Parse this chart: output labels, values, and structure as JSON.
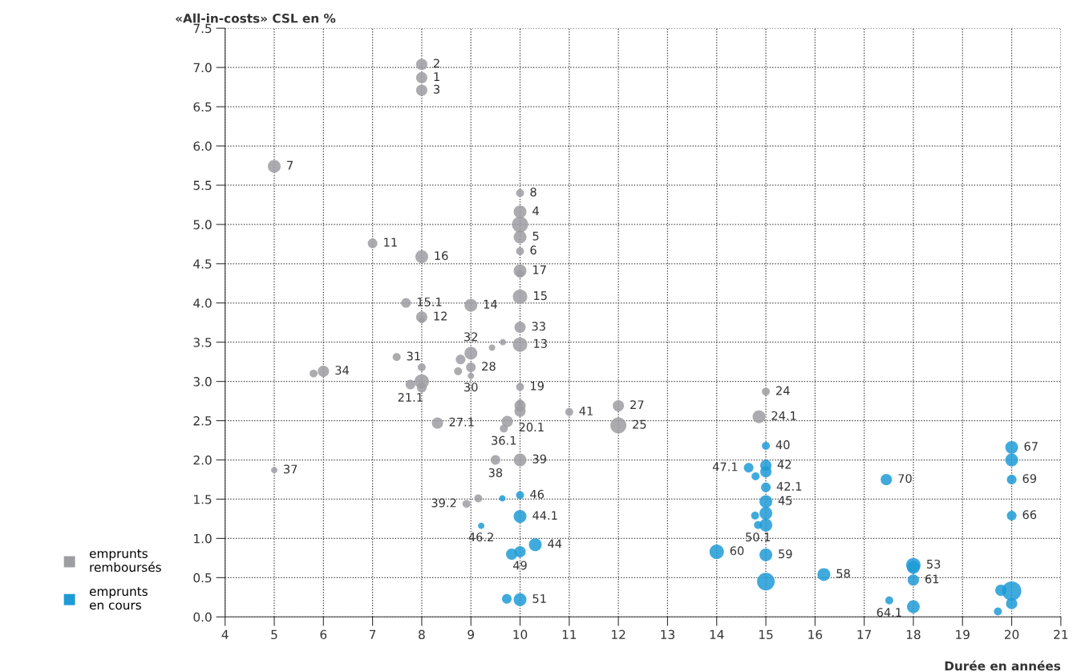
{
  "chart_data": {
    "type": "bubble",
    "ylabel": "«All-in-costs» CSL en %",
    "xlabel": "Durée en années",
    "xlim": [
      4,
      21
    ],
    "xticks": [
      4,
      5,
      6,
      7,
      8,
      9,
      10,
      11,
      12,
      13,
      14,
      15,
      16,
      17,
      18,
      19,
      20,
      21
    ],
    "ylim": [
      0,
      7.5
    ],
    "yticks": [
      {
        "value": 0,
        "label": "0.0"
      },
      {
        "value": 0.5,
        "label": "0.5"
      },
      {
        "value": 1,
        "label": "1.0"
      },
      {
        "value": 1.5,
        "label": "1.5"
      },
      {
        "value": 2,
        "label": "2.0"
      },
      {
        "value": 2.5,
        "label": "2.5"
      },
      {
        "value": 3,
        "label": "3.0"
      },
      {
        "value": 3.5,
        "label": "3.5"
      },
      {
        "value": 4,
        "label": "4.0"
      },
      {
        "value": 4.5,
        "label": "4.5"
      },
      {
        "value": 5,
        "label": "5.0"
      },
      {
        "value": 5.5,
        "label": "5.5"
      },
      {
        "value": 6,
        "label": "6.0"
      },
      {
        "value": 6.5,
        "label": "6.5"
      },
      {
        "value": 7,
        "label": "7.0"
      },
      {
        "value": 7.5,
        "label": "7.5"
      }
    ],
    "grid": true,
    "legend": "bottom left",
    "marker": "circle",
    "series": [
      {
        "name": "emprunts remboursés",
        "color": "#9d9ea2",
        "x": [
          8,
          8,
          8,
          5,
          10,
          10,
          10,
          10,
          10,
          7,
          8,
          10,
          10,
          10,
          7.68,
          8,
          8,
          9,
          10,
          10,
          9.65,
          9.43,
          9,
          8.79,
          7.49,
          9,
          8.74,
          9,
          8,
          8,
          8,
          7.77,
          6,
          5.8,
          10,
          10,
          10,
          10,
          8.32,
          9.74,
          9.67,
          11,
          12,
          12,
          15,
          14.86,
          5,
          9.5,
          10,
          9.15,
          8.91
        ],
        "values": [
          7.04,
          6.87,
          6.71,
          5.74,
          5.4,
          5.16,
          5.0,
          4.84,
          4.66,
          4.76,
          4.59,
          4.41,
          4.37,
          4.08,
          4.0,
          3.82,
          3.78,
          3.97,
          3.69,
          3.47,
          3.5,
          3.43,
          3.36,
          3.28,
          3.31,
          3.18,
          3.13,
          3.07,
          3.18,
          3.0,
          2.92,
          2.96,
          3.13,
          3.1,
          2.93,
          2.73,
          2.69,
          2.62,
          2.47,
          2.49,
          2.4,
          2.61,
          2.69,
          2.44,
          2.87,
          2.55,
          1.87,
          2.0,
          2.0,
          1.51,
          1.44
        ],
        "sizes": [
          0.34,
          0.34,
          0.34,
          0.44,
          0.17,
          0.44,
          0.69,
          0.44,
          0.17,
          0.25,
          0.44,
          0.44,
          0.17,
          0.56,
          0.25,
          0.34,
          0.11,
          0.44,
          0.34,
          0.56,
          0.11,
          0.11,
          0.44,
          0.25,
          0.17,
          0.25,
          0.17,
          0.11,
          0.17,
          0.56,
          0.25,
          0.25,
          0.34,
          0.17,
          0.17,
          0.11,
          0.34,
          0.34,
          0.34,
          0.34,
          0.17,
          0.17,
          0.34,
          0.69,
          0.17,
          0.44,
          0.11,
          0.25,
          0.44,
          0.17,
          0.17
        ]
      },
      {
        "name": "emprunts en cours",
        "color": "#1e9bd7",
        "x": [
          10,
          9.64,
          9.21,
          10,
          10.31,
          10,
          9.83,
          10,
          9.73,
          15,
          15,
          15,
          14.65,
          14.79,
          15,
          15,
          15,
          14.78,
          14.84,
          15,
          14,
          15,
          15,
          16.18,
          17.45,
          17.51,
          18,
          18,
          18,
          18,
          20,
          20,
          20,
          20,
          20,
          19.78,
          20,
          19.72
        ],
        "values": [
          1.55,
          1.51,
          1.16,
          1.28,
          0.92,
          0.83,
          0.8,
          0.22,
          0.23,
          2.18,
          1.93,
          1.85,
          1.9,
          1.79,
          1.65,
          1.47,
          1.32,
          1.29,
          1.17,
          1.17,
          0.83,
          0.79,
          0.45,
          0.54,
          1.75,
          0.21,
          0.66,
          0.63,
          0.47,
          0.13,
          2.16,
          2.0,
          1.75,
          1.29,
          0.33,
          0.34,
          0.17,
          0.07
        ],
        "sizes": [
          0.17,
          0.11,
          0.11,
          0.44,
          0.44,
          0.34,
          0.34,
          0.44,
          0.25,
          0.17,
          0.34,
          0.34,
          0.25,
          0.17,
          0.25,
          0.44,
          0.44,
          0.17,
          0.17,
          0.44,
          0.56,
          0.44,
          0.84,
          0.44,
          0.34,
          0.17,
          0.56,
          0.44,
          0.34,
          0.44,
          0.44,
          0.44,
          0.25,
          0.25,
          1,
          0.34,
          0.34,
          0.17
        ]
      }
    ],
    "annotations": [
      {
        "text": "2",
        "x": 8,
        "y": 7.04
      },
      {
        "text": "1",
        "x": 8,
        "y": 6.87
      },
      {
        "text": "3",
        "x": 8,
        "y": 6.71
      },
      {
        "text": "7",
        "x": 5,
        "y": 5.74
      },
      {
        "text": "8",
        "x": 10,
        "y": 5.4
      },
      {
        "text": "4",
        "x": 10,
        "y": 5.16
      },
      {
        "text": "5",
        "x": 10,
        "y": 4.84
      },
      {
        "text": "6",
        "x": 10,
        "y": 4.66
      },
      {
        "text": "11",
        "x": 7,
        "y": 4.76
      },
      {
        "text": "16",
        "x": 8,
        "y": 4.59
      },
      {
        "text": "17",
        "x": 10,
        "y": 4.41
      },
      {
        "text": "15",
        "x": 10,
        "y": 4.08
      },
      {
        "text": "15.1",
        "x": 7.68,
        "y": 4.0
      },
      {
        "text": "12",
        "x": 8,
        "y": 3.82
      },
      {
        "text": "14",
        "x": 9,
        "y": 3.97
      },
      {
        "text": "33",
        "x": 10,
        "y": 3.69
      },
      {
        "text": "13",
        "x": 10,
        "y": 3.47
      },
      {
        "text": "32",
        "x": 9,
        "y": 3.36
      },
      {
        "text": "31",
        "x": 7.49,
        "y": 3.31
      },
      {
        "text": "28",
        "x": 9,
        "y": 3.18
      },
      {
        "text": "30",
        "x": 9,
        "y": 3.07
      },
      {
        "text": "21.1",
        "x": 7.77,
        "y": 2.96
      },
      {
        "text": "34",
        "x": 6,
        "y": 3.13
      },
      {
        "text": "19",
        "x": 10,
        "y": 2.93
      },
      {
        "text": "27.1",
        "x": 8.32,
        "y": 2.47
      },
      {
        "text": "20.1",
        "x": 9.74,
        "y": 2.49
      },
      {
        "text": "36.1",
        "x": 9.67,
        "y": 2.4
      },
      {
        "text": "41",
        "x": 11,
        "y": 2.61
      },
      {
        "text": "27",
        "x": 12,
        "y": 2.69
      },
      {
        "text": "25",
        "x": 12,
        "y": 2.44
      },
      {
        "text": "24",
        "x": 15,
        "y": 2.87
      },
      {
        "text": "24.1",
        "x": 14.86,
        "y": 2.55
      },
      {
        "text": "37",
        "x": 5,
        "y": 1.87
      },
      {
        "text": "38",
        "x": 9.5,
        "y": 2.0
      },
      {
        "text": "39",
        "x": 10,
        "y": 2.0
      },
      {
        "text": "39.2",
        "x": 8.91,
        "y": 1.44
      },
      {
        "text": "46",
        "x": 10,
        "y": 1.55
      },
      {
        "text": "46.2",
        "x": 9.21,
        "y": 1.16
      },
      {
        "text": "44.1",
        "x": 10,
        "y": 1.28
      },
      {
        "text": "44",
        "x": 10.31,
        "y": 0.92
      },
      {
        "text": "49",
        "x": 10,
        "y": 0.83
      },
      {
        "text": "51",
        "x": 10,
        "y": 0.22
      },
      {
        "text": "40",
        "x": 15,
        "y": 2.18
      },
      {
        "text": "42",
        "x": 15,
        "y": 1.93
      },
      {
        "text": "47.1",
        "x": 14.65,
        "y": 1.9
      },
      {
        "text": "42.1",
        "x": 15,
        "y": 1.65
      },
      {
        "text": "45",
        "x": 15,
        "y": 1.47
      },
      {
        "text": "50.1",
        "x": 14.84,
        "y": 1.17
      },
      {
        "text": "60",
        "x": 14,
        "y": 0.83
      },
      {
        "text": "59",
        "x": 15,
        "y": 0.79
      },
      {
        "text": "58",
        "x": 16.18,
        "y": 0.54
      },
      {
        "text": "70",
        "x": 17.45,
        "y": 1.75
      },
      {
        "text": "64.1",
        "x": 17.51,
        "y": 0.21
      },
      {
        "text": "53",
        "x": 18,
        "y": 0.66
      },
      {
        "text": "61",
        "x": 18,
        "y": 0.47
      },
      {
        "text": "67",
        "x": 20,
        "y": 2.16
      },
      {
        "text": "69",
        "x": 20,
        "y": 1.75
      },
      {
        "text": "66",
        "x": 20,
        "y": 1.29
      }
    ]
  }
}
